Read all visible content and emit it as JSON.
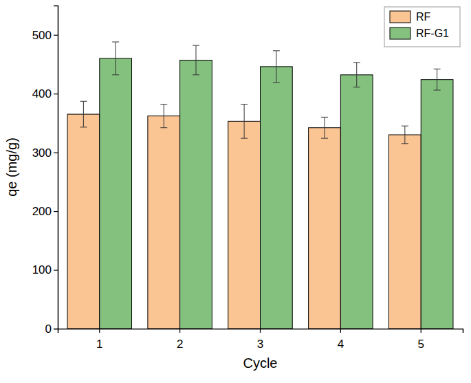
{
  "chart_data": {
    "type": "bar",
    "x_label": "Cycle",
    "y_label": "qe (mg/g)",
    "categories": [
      "1",
      "2",
      "3",
      "4",
      "5"
    ],
    "series": [
      {
        "name": "RF",
        "color": "#fbc493",
        "values": [
          365,
          362,
          353,
          342,
          330
        ],
        "errors": [
          22,
          20,
          29,
          18,
          15
        ]
      },
      {
        "name": "RF-G1",
        "color": "#84c07e",
        "values": [
          460,
          457,
          446,
          432,
          424
        ],
        "errors": [
          28,
          25,
          27,
          21,
          18
        ]
      }
    ],
    "ylim": [
      0,
      550
    ],
    "yticks": [
      0,
      100,
      200,
      300,
      400,
      500
    ],
    "legend": "upper right",
    "grid": false
  }
}
